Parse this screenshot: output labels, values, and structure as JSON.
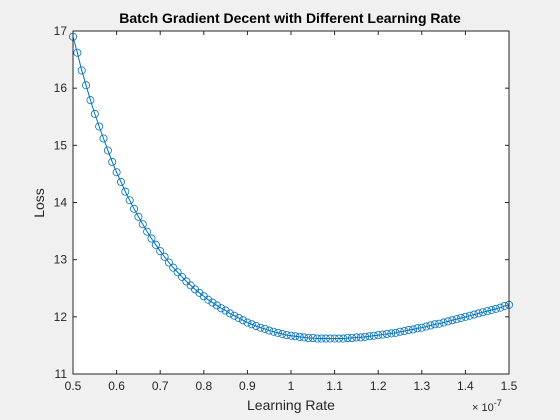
{
  "chart_data": {
    "type": "line",
    "title": "Batch Gradient Decent with Different Learning Rate",
    "xlabel": "Learning Rate",
    "ylabel": "Loss",
    "x_multiplier_base": "× 10",
    "x_multiplier_exp": "-7",
    "xlim": [
      0.5,
      1.5
    ],
    "ylim": [
      11,
      17
    ],
    "xticks": [
      "0.5",
      "0.6",
      "0.7",
      "0.8",
      "0.9",
      "1",
      "1.1",
      "1.2",
      "1.3",
      "1.4",
      "1.5"
    ],
    "yticks": [
      "11",
      "12",
      "13",
      "14",
      "15",
      "16",
      "17"
    ],
    "grid": false,
    "marker": "circle",
    "line_color": "#0072bd",
    "background_color": "#f0f0f0",
    "axes_color": "#ffffff",
    "series": [
      {
        "x": [
          0.5,
          0.51,
          0.52,
          0.53,
          0.54,
          0.55,
          0.56,
          0.57,
          0.58,
          0.59,
          0.6,
          0.61,
          0.62,
          0.63,
          0.64,
          0.65,
          0.66,
          0.67,
          0.68,
          0.69,
          0.7,
          0.71,
          0.72,
          0.73,
          0.74,
          0.75,
          0.76,
          0.77,
          0.78,
          0.79,
          0.8,
          0.81,
          0.82,
          0.83,
          0.84,
          0.85,
          0.86,
          0.87,
          0.88,
          0.89,
          0.9,
          0.91,
          0.92,
          0.93,
          0.94,
          0.95,
          0.96,
          0.97,
          0.98,
          0.99,
          1.0,
          1.01,
          1.02,
          1.03,
          1.04,
          1.05,
          1.06,
          1.07,
          1.08,
          1.09,
          1.1,
          1.11,
          1.12,
          1.13,
          1.14,
          1.15,
          1.16,
          1.17,
          1.18,
          1.19,
          1.2,
          1.21,
          1.22,
          1.23,
          1.24,
          1.25,
          1.26,
          1.27,
          1.28,
          1.29,
          1.3,
          1.31,
          1.32,
          1.33,
          1.34,
          1.35,
          1.36,
          1.37,
          1.38,
          1.39,
          1.4,
          1.41,
          1.42,
          1.43,
          1.44,
          1.45,
          1.46,
          1.47,
          1.48,
          1.49,
          1.5
        ],
        "y": [
          16.9,
          16.62,
          16.31,
          16.05,
          15.79,
          15.55,
          15.33,
          15.12,
          14.91,
          14.71,
          14.53,
          14.36,
          14.19,
          14.04,
          13.89,
          13.75,
          13.62,
          13.49,
          13.37,
          13.26,
          13.15,
          13.05,
          12.95,
          12.86,
          12.78,
          12.7,
          12.62,
          12.55,
          12.48,
          12.42,
          12.36,
          12.3,
          12.25,
          12.2,
          12.15,
          12.11,
          12.06,
          12.02,
          11.98,
          11.94,
          11.9,
          11.87,
          11.84,
          11.81,
          11.79,
          11.76,
          11.74,
          11.72,
          11.7,
          11.68,
          11.67,
          11.66,
          11.65,
          11.64,
          11.63,
          11.63,
          11.62,
          11.62,
          11.62,
          11.62,
          11.62,
          11.62,
          11.62,
          11.63,
          11.63,
          11.64,
          11.64,
          11.65,
          11.66,
          11.67,
          11.68,
          11.69,
          11.7,
          11.71,
          11.72,
          11.74,
          11.75,
          11.77,
          11.78,
          11.8,
          11.81,
          11.83,
          11.85,
          11.87,
          11.88,
          11.9,
          11.92,
          11.94,
          11.96,
          11.98,
          12.0,
          12.02,
          12.04,
          12.06,
          12.08,
          12.1,
          12.12,
          12.14,
          12.16,
          12.19,
          12.21
        ]
      }
    ]
  }
}
